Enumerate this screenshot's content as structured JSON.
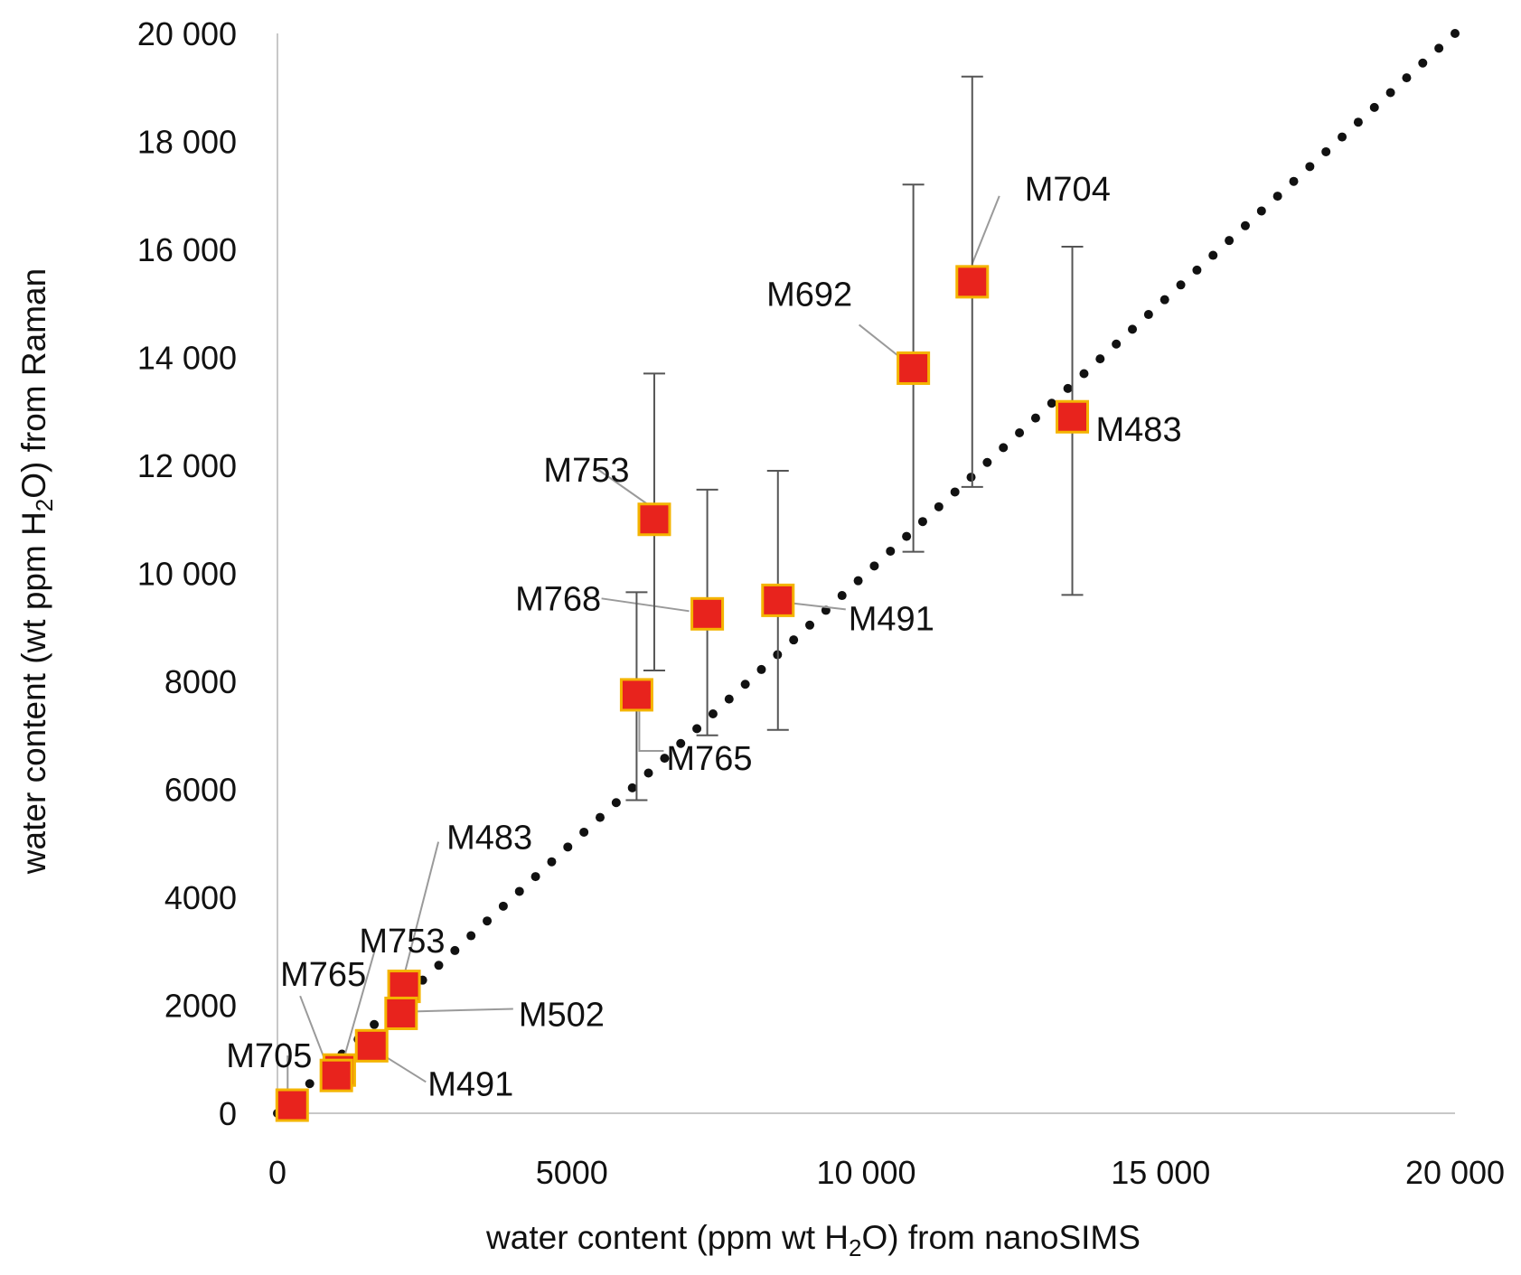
{
  "chart_data": {
    "type": "scatter",
    "title": "",
    "xlabel": {
      "before": "water content (ppm wt H",
      "sub": "2",
      "after": "O)  from nanoSIMS"
    },
    "ylabel": {
      "before": "water content (wt ppm H",
      "sub": "2",
      "after": "O) from Raman"
    },
    "xlim": [
      0,
      20000
    ],
    "ylim": [
      0,
      20000
    ],
    "x_ticks": [
      {
        "value": 0,
        "label": "0"
      },
      {
        "value": 5000,
        "label": "5000"
      },
      {
        "value": 10000,
        "label": "10 000"
      },
      {
        "value": 15000,
        "label": "15 000"
      },
      {
        "value": 20000,
        "label": "20 000"
      }
    ],
    "y_ticks": [
      {
        "value": 0,
        "label": "0"
      },
      {
        "value": 2000,
        "label": "2000"
      },
      {
        "value": 4000,
        "label": "4000"
      },
      {
        "value": 6000,
        "label": "6000"
      },
      {
        "value": 8000,
        "label": "8000"
      },
      {
        "value": 10000,
        "label": "10 000"
      },
      {
        "value": 12000,
        "label": "12 000"
      },
      {
        "value": 14000,
        "label": "14 000"
      },
      {
        "value": 16000,
        "label": "16 000"
      },
      {
        "value": 18000,
        "label": "18 000"
      },
      {
        "value": 20000,
        "label": "20 000"
      }
    ],
    "grid": false,
    "reference_line": {
      "style": "dotted",
      "from": [
        0,
        0
      ],
      "to": [
        20000,
        20000
      ]
    },
    "series": [
      {
        "marker": "square",
        "points": [
          {
            "label": "M704",
            "x": 11800,
            "y": 15400,
            "yerr": [
              11600,
              19200
            ]
          },
          {
            "label": "M692",
            "x": 10800,
            "y": 13800,
            "yerr": [
              10400,
              17200
            ]
          },
          {
            "label": "M483",
            "x": 13500,
            "y": 12900,
            "yerr": [
              9600,
              16050
            ]
          },
          {
            "label": "M753",
            "x": 6400,
            "y": 11000,
            "yerr": [
              8200,
              13700
            ]
          },
          {
            "label": "M768",
            "x": 7300,
            "y": 9250,
            "yerr": [
              7000,
              11550
            ]
          },
          {
            "label": "M491",
            "x": 8500,
            "y": 9500,
            "yerr": [
              7100,
              11900
            ]
          },
          {
            "label": "M765",
            "x": 6100,
            "y": 7750,
            "yerr": [
              5800,
              9650
            ]
          },
          {
            "label": "M483",
            "x": 2150,
            "y": 2350
          },
          {
            "label": "M502",
            "x": 2100,
            "y": 1850
          },
          {
            "label": "M491",
            "x": 1600,
            "y": 1250
          },
          {
            "label": "M753",
            "x": 1050,
            "y": 800
          },
          {
            "label": "M765",
            "x": 1000,
            "y": 700
          },
          {
            "label": "M705",
            "x": 250,
            "y": 150
          }
        ]
      }
    ],
    "colors": {
      "marker_fill": "#e8231d",
      "marker_edge": "#f4b400",
      "errorbar": "#555555",
      "axis": "#c8c8c8",
      "dots": "#111111",
      "leader": "#9a9a9a"
    }
  }
}
